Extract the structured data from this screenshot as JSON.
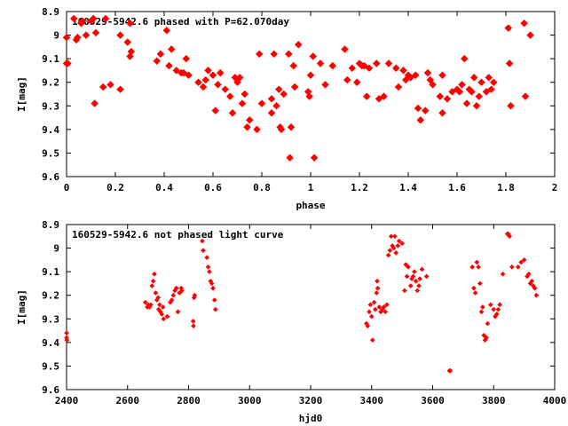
{
  "chart_data": [
    {
      "type": "scatter",
      "title": "160529-5942.6 phased with P=62.070day",
      "xlabel": "phase",
      "ylabel": "I[mag]",
      "xlim": [
        0,
        2
      ],
      "ylim": [
        9.6,
        8.9
      ],
      "y_inverted": true,
      "x_ticks": [
        "0",
        "0.2",
        "0.4",
        "0.6",
        "0.8",
        "1",
        "1.2",
        "1.4",
        "1.6",
        "1.8",
        "2"
      ],
      "y_ticks": [
        "8.9",
        "9",
        "9.1",
        "9.2",
        "9.3",
        "9.4",
        "9.5",
        "9.6"
      ],
      "marker_color": "#ff0000",
      "grid": false,
      "series": [
        {
          "points": [
            [
              0.0,
              9.01
            ],
            [
              0.0,
              9.12
            ],
            [
              0.005,
              9.12
            ],
            [
              0.03,
              8.93
            ],
            [
              0.04,
              9.02
            ],
            [
              0.045,
              9.01
            ],
            [
              0.06,
              8.95
            ],
            [
              0.065,
              8.94
            ],
            [
              0.08,
              9.0
            ],
            [
              0.1,
              8.94
            ],
            [
              0.11,
              8.93
            ],
            [
              0.115,
              9.29
            ],
            [
              0.12,
              8.99
            ],
            [
              0.15,
              9.22
            ],
            [
              0.16,
              8.93
            ],
            [
              0.18,
              9.21
            ],
            [
              0.22,
              9.23
            ],
            [
              0.22,
              9.0
            ],
            [
              0.25,
              9.03
            ],
            [
              0.26,
              8.95
            ],
            [
              0.26,
              9.09
            ],
            [
              0.265,
              9.07
            ],
            [
              0.37,
              9.11
            ],
            [
              0.385,
              9.08
            ],
            [
              0.41,
              8.98
            ],
            [
              0.42,
              9.13
            ],
            [
              0.43,
              9.06
            ],
            [
              0.45,
              9.15
            ],
            [
              0.47,
              9.16
            ],
            [
              0.48,
              9.16
            ],
            [
              0.49,
              9.1
            ],
            [
              0.5,
              9.17
            ],
            [
              0.54,
              9.2
            ],
            [
              0.56,
              9.22
            ],
            [
              0.57,
              9.19
            ],
            [
              0.58,
              9.15
            ],
            [
              0.6,
              9.17
            ],
            [
              0.61,
              9.32
            ],
            [
              0.62,
              9.21
            ],
            [
              0.63,
              9.16
            ],
            [
              0.65,
              9.23
            ],
            [
              0.67,
              9.26
            ],
            [
              0.68,
              9.33
            ],
            [
              0.69,
              9.18
            ],
            [
              0.7,
              9.2
            ],
            [
              0.71,
              9.18
            ],
            [
              0.72,
              9.29
            ],
            [
              0.73,
              9.25
            ],
            [
              0.74,
              9.39
            ],
            [
              0.75,
              9.36
            ],
            [
              0.78,
              9.4
            ],
            [
              0.79,
              9.08
            ],
            [
              0.8,
              9.29
            ],
            [
              0.84,
              9.27
            ],
            [
              0.84,
              9.33
            ],
            [
              0.85,
              9.08
            ],
            [
              0.86,
              9.3
            ],
            [
              0.87,
              9.23
            ],
            [
              0.875,
              9.39
            ],
            [
              0.88,
              9.4
            ],
            [
              0.89,
              9.25
            ],
            [
              0.91,
              9.08
            ],
            [
              0.915,
              9.52
            ],
            [
              0.92,
              9.39
            ],
            [
              0.93,
              9.13
            ],
            [
              0.935,
              9.22
            ],
            [
              0.95,
              9.04
            ],
            [
              0.99,
              9.24
            ],
            [
              0.995,
              9.26
            ],
            [
              1.0,
              9.17
            ],
            [
              1.01,
              9.09
            ],
            [
              1.015,
              9.52
            ],
            [
              1.04,
              9.12
            ],
            [
              1.06,
              9.21
            ],
            [
              1.09,
              9.13
            ],
            [
              1.14,
              9.06
            ],
            [
              1.15,
              9.19
            ],
            [
              1.17,
              9.14
            ],
            [
              1.19,
              9.2
            ],
            [
              1.2,
              9.12
            ],
            [
              1.21,
              9.13
            ],
            [
              1.22,
              9.13
            ],
            [
              1.23,
              9.26
            ],
            [
              1.24,
              9.14
            ],
            [
              1.27,
              9.12
            ],
            [
              1.28,
              9.27
            ],
            [
              1.3,
              9.26
            ],
            [
              1.32,
              9.12
            ],
            [
              1.35,
              9.14
            ],
            [
              1.36,
              9.22
            ],
            [
              1.38,
              9.15
            ],
            [
              1.39,
              9.19
            ],
            [
              1.4,
              9.17
            ],
            [
              1.41,
              9.18
            ],
            [
              1.43,
              9.17
            ],
            [
              1.44,
              9.31
            ],
            [
              1.45,
              9.36
            ],
            [
              1.47,
              9.32
            ],
            [
              1.48,
              9.16
            ],
            [
              1.49,
              9.19
            ],
            [
              1.5,
              9.21
            ],
            [
              1.53,
              9.26
            ],
            [
              1.54,
              9.17
            ],
            [
              1.54,
              9.33
            ],
            [
              1.56,
              9.27
            ],
            [
              1.58,
              9.24
            ],
            [
              1.6,
              9.23
            ],
            [
              1.61,
              9.24
            ],
            [
              1.62,
              9.21
            ],
            [
              1.63,
              9.1
            ],
            [
              1.64,
              9.29
            ],
            [
              1.65,
              9.23
            ],
            [
              1.66,
              9.24
            ],
            [
              1.67,
              9.18
            ],
            [
              1.68,
              9.3
            ],
            [
              1.69,
              9.26
            ],
            [
              1.7,
              9.2
            ],
            [
              1.72,
              9.24
            ],
            [
              1.73,
              9.18
            ],
            [
              1.74,
              9.23
            ],
            [
              1.75,
              9.2
            ],
            [
              1.81,
              8.97
            ],
            [
              1.815,
              9.12
            ],
            [
              1.82,
              9.3
            ],
            [
              1.875,
              8.95
            ],
            [
              1.88,
              9.26
            ],
            [
              1.9,
              9.0
            ]
          ]
        }
      ]
    },
    {
      "type": "scatter",
      "title": "160529-5942.6 not phased light curve",
      "xlabel": "hjd0",
      "ylabel": "I[mag]",
      "xlim": [
        2400,
        4000
      ],
      "ylim": [
        9.6,
        8.9
      ],
      "y_inverted": true,
      "x_ticks": [
        "2400",
        "2600",
        "2800",
        "3000",
        "3200",
        "3400",
        "3600",
        "3800",
        "4000"
      ],
      "y_ticks": [
        "8.9",
        "9",
        "9.1",
        "9.2",
        "9.3",
        "9.4",
        "9.5",
        "9.6"
      ],
      "marker_color": "#ff0000",
      "grid": false,
      "series": [
        {
          "points": [
            [
              2400,
              9.36
            ],
            [
              2400,
              9.38
            ],
            [
              2401,
              9.39
            ],
            [
              2658,
              9.23
            ],
            [
              2665,
              9.25
            ],
            [
              2668,
              9.24
            ],
            [
              2672,
              9.25
            ],
            [
              2676,
              9.24
            ],
            [
              2680,
              9.16
            ],
            [
              2684,
              9.14
            ],
            [
              2688,
              9.11
            ],
            [
              2692,
              9.19
            ],
            [
              2696,
              9.22
            ],
            [
              2700,
              9.21
            ],
            [
              2702,
              9.26
            ],
            [
              2705,
              9.24
            ],
            [
              2708,
              9.27
            ],
            [
              2712,
              9.28
            ],
            [
              2716,
              9.25
            ],
            [
              2718,
              9.3
            ],
            [
              2730,
              9.29
            ],
            [
              2740,
              9.23
            ],
            [
              2745,
              9.22
            ],
            [
              2750,
              9.2
            ],
            [
              2755,
              9.18
            ],
            [
              2760,
              9.17
            ],
            [
              2765,
              9.27
            ],
            [
              2770,
              9.19
            ],
            [
              2776,
              9.17
            ],
            [
              2778,
              9.18
            ],
            [
              2815,
              9.31
            ],
            [
              2816,
              9.33
            ],
            [
              2818,
              9.21
            ],
            [
              2820,
              9.2
            ],
            [
              2845,
              8.97
            ],
            [
              2848,
              9.01
            ],
            [
              2860,
              9.04
            ],
            [
              2864,
              9.08
            ],
            [
              2868,
              9.1
            ],
            [
              2872,
              9.14
            ],
            [
              2876,
              9.15
            ],
            [
              2880,
              9.17
            ],
            [
              2885,
              9.22
            ],
            [
              2888,
              9.26
            ],
            [
              3383,
              9.32
            ],
            [
              3387,
              9.33
            ],
            [
              3392,
              9.27
            ],
            [
              3396,
              9.24
            ],
            [
              3400,
              9.29
            ],
            [
              3403,
              9.39
            ],
            [
              3408,
              9.23
            ],
            [
              3412,
              9.26
            ],
            [
              3416,
              9.19
            ],
            [
              3418,
              9.14
            ],
            [
              3420,
              9.17
            ],
            [
              3425,
              9.25
            ],
            [
              3430,
              9.27
            ],
            [
              3435,
              9.26
            ],
            [
              3440,
              9.25
            ],
            [
              3445,
              9.27
            ],
            [
              3450,
              9.24
            ],
            [
              3455,
              9.03
            ],
            [
              3460,
              9.01
            ],
            [
              3464,
              8.95
            ],
            [
              3468,
              8.99
            ],
            [
              3472,
              9.0
            ],
            [
              3476,
              8.95
            ],
            [
              3480,
              9.02
            ],
            [
              3486,
              8.99
            ],
            [
              3490,
              8.97
            ],
            [
              3500,
              8.98
            ],
            [
              3508,
              9.18
            ],
            [
              3512,
              9.07
            ],
            [
              3516,
              9.12
            ],
            [
              3520,
              9.08
            ],
            [
              3528,
              9.16
            ],
            [
              3532,
              9.13
            ],
            [
              3536,
              9.12
            ],
            [
              3540,
              9.1
            ],
            [
              3545,
              9.14
            ],
            [
              3550,
              9.18
            ],
            [
              3555,
              9.16
            ],
            [
              3558,
              9.13
            ],
            [
              3565,
              9.09
            ],
            [
              3580,
              9.12
            ],
            [
              3655,
              9.52
            ],
            [
              3658,
              9.52
            ],
            [
              3730,
              9.08
            ],
            [
              3735,
              9.17
            ],
            [
              3740,
              9.19
            ],
            [
              3745,
              9.06
            ],
            [
              3750,
              9.08
            ],
            [
              3755,
              9.15
            ],
            [
              3760,
              9.27
            ],
            [
              3764,
              9.25
            ],
            [
              3768,
              9.37
            ],
            [
              3772,
              9.39
            ],
            [
              3776,
              9.38
            ],
            [
              3780,
              9.32
            ],
            [
              3790,
              9.24
            ],
            [
              3800,
              9.26
            ],
            [
              3805,
              9.29
            ],
            [
              3810,
              9.28
            ],
            [
              3815,
              9.26
            ],
            [
              3820,
              9.24
            ],
            [
              3830,
              9.11
            ],
            [
              3845,
              8.94
            ],
            [
              3848,
              8.94
            ],
            [
              3852,
              8.95
            ],
            [
              3860,
              9.08
            ],
            [
              3880,
              9.08
            ],
            [
              3890,
              9.06
            ],
            [
              3900,
              9.05
            ],
            [
              3910,
              9.12
            ],
            [
              3915,
              9.11
            ],
            [
              3920,
              9.15
            ],
            [
              3925,
              9.14
            ],
            [
              3930,
              9.16
            ],
            [
              3935,
              9.17
            ],
            [
              3940,
              9.2
            ]
          ]
        }
      ]
    }
  ]
}
